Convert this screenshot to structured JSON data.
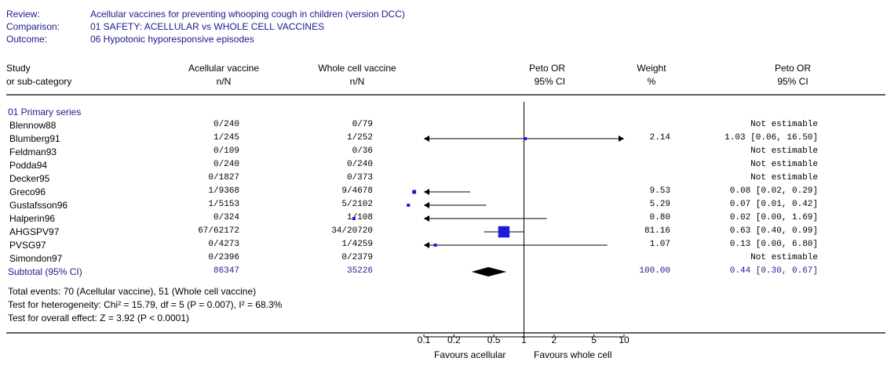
{
  "meta": {
    "review_label": "Review:",
    "review_value": "Acellular vaccines for preventing whooping cough in children (version DCC)",
    "comparison_label": "Comparison:",
    "comparison_value": "01 SAFETY: ACELLULAR vs WHOLE CELL VACCINES",
    "outcome_label": "Outcome:",
    "outcome_value": "06 Hypotonic hyporesponsive episodes"
  },
  "headers": {
    "study_1": "Study",
    "study_2": "or sub-category",
    "acellular_1": "Acellular vaccine",
    "acellular_2": "n/N",
    "whole_1": "Whole cell vaccine",
    "whole_2": "n/N",
    "plot_1": "Peto OR",
    "plot_2": "95% CI",
    "weight_1": "Weight",
    "weight_2": "%",
    "or_1": "Peto OR",
    "or_2": "95% CI"
  },
  "subgroup_title": "01 Primary series",
  "footer": {
    "total_events": "Total events: 70 (Acellular vaccine), 51 (Whole cell vaccine)",
    "heterogeneity": "Test for heterogeneity: Chi² = 15.79, df = 5 (P = 0.007), I² = 68.3%",
    "overall_effect": "Test for overall effect: Z = 3.92 (P < 0.0001)"
  },
  "favours": {
    "left": "Favours acellular",
    "right": "Favours whole cell"
  },
  "colors": {
    "marker": "#1c1cd6",
    "navy": "#1a1a8c"
  },
  "chart_data": {
    "type": "forest",
    "xscale": "log",
    "xlim": [
      0.1,
      10
    ],
    "ticks": [
      "0.1",
      "0.2",
      "0.5",
      "1",
      "2",
      "5",
      "10"
    ],
    "null_line": 1,
    "studies": [
      {
        "name": "Blennow88",
        "acellular": "0/240",
        "whole": "0/79",
        "weight": "",
        "or_text": "Not estimable",
        "or": null,
        "lo": null,
        "hi": null
      },
      {
        "name": "Blumberg91",
        "acellular": "1/245",
        "whole": "1/252",
        "weight": "2.14",
        "or_text": "1.03 [0.06, 16.50]",
        "or": 1.03,
        "lo": 0.06,
        "hi": 16.5
      },
      {
        "name": "Feldman93",
        "acellular": "0/109",
        "whole": "0/36",
        "weight": "",
        "or_text": "Not estimable",
        "or": null,
        "lo": null,
        "hi": null
      },
      {
        "name": "Podda94",
        "acellular": "0/240",
        "whole": "0/240",
        "weight": "",
        "or_text": "Not estimable",
        "or": null,
        "lo": null,
        "hi": null
      },
      {
        "name": "Decker95",
        "acellular": "0/1827",
        "whole": "0/373",
        "weight": "",
        "or_text": "Not estimable",
        "or": null,
        "lo": null,
        "hi": null
      },
      {
        "name": "Greco96",
        "acellular": "1/9368",
        "whole": "9/4678",
        "weight": "9.53",
        "or_text": "0.08 [0.02, 0.29]",
        "or": 0.08,
        "lo": 0.02,
        "hi": 0.29
      },
      {
        "name": "Gustafsson96",
        "acellular": "1/5153",
        "whole": "5/2102",
        "weight": "5.29",
        "or_text": "0.07 [0.01, 0.42]",
        "or": 0.07,
        "lo": 0.01,
        "hi": 0.42
      },
      {
        "name": "Halperin96",
        "acellular": "0/324",
        "whole": "1/108",
        "weight": "0.80",
        "or_text": "0.02 [0.00, 1.69]",
        "or": 0.02,
        "lo": 0.0,
        "hi": 1.69
      },
      {
        "name": "AHGSPV97",
        "acellular": "67/62172",
        "whole": "34/20720",
        "weight": "81.16",
        "or_text": "0.63 [0.40, 0.99]",
        "or": 0.63,
        "lo": 0.4,
        "hi": 0.99
      },
      {
        "name": "PVSG97",
        "acellular": "0/4273",
        "whole": "1/4259",
        "weight": "1.07",
        "or_text": "0.13 [0.00, 6.80]",
        "or": 0.13,
        "lo": 0.0,
        "hi": 6.8
      },
      {
        "name": "Simondon97",
        "acellular": "0/2396",
        "whole": "0/2379",
        "weight": "",
        "or_text": "Not estimable",
        "or": null,
        "lo": null,
        "hi": null
      }
    ],
    "subtotal": {
      "name": "Subtotal (95% CI)",
      "acellular": "86347",
      "whole": "35226",
      "weight": "100.00",
      "or_text": "0.44 [0.30, 0.67]",
      "or": 0.44,
      "lo": 0.3,
      "hi": 0.67
    }
  }
}
